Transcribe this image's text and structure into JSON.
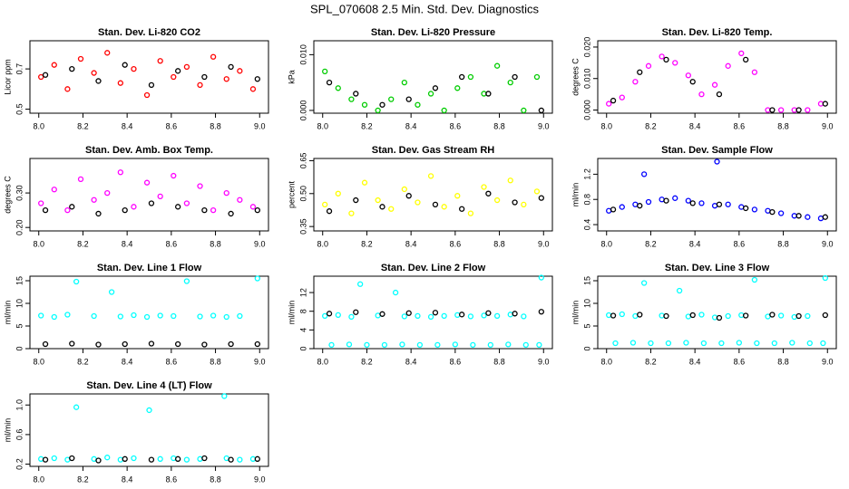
{
  "title": "SPL_070608  2.5 Min. Std. Dev. Diagnostics",
  "chart_data": [
    {
      "type": "scatter",
      "title": "Stan. Dev. Li-820 CO2",
      "ylabel": "Licor ppm",
      "xlim": [
        7.96,
        9.04
      ],
      "ylim": [
        0.48,
        0.84
      ],
      "xticks": [
        {
          "value": 8.0,
          "label": "8.0"
        },
        8.2,
        8.4,
        8.6,
        8.8,
        {
          "value": 9.0,
          "label": "9.0"
        }
      ],
      "yticks": [
        0.5,
        0.7
      ],
      "series": [
        {
          "color": "#ff0000",
          "x": [
            8.01,
            8.07,
            8.13,
            8.19,
            8.25,
            8.31,
            8.37,
            8.43,
            8.49,
            8.55,
            8.61,
            8.67,
            8.73,
            8.79,
            8.85,
            8.91,
            8.97
          ],
          "values": [
            0.66,
            0.72,
            0.6,
            0.75,
            0.68,
            0.78,
            0.63,
            0.7,
            0.57,
            0.74,
            0.66,
            0.71,
            0.62,
            0.76,
            0.65,
            0.69,
            0.6
          ]
        },
        {
          "color": "#000000",
          "x": [
            8.03,
            8.15,
            8.27,
            8.39,
            8.51,
            8.63,
            8.75,
            8.87,
            8.99
          ],
          "values": [
            0.67,
            0.7,
            0.64,
            0.72,
            0.62,
            0.69,
            0.66,
            0.71,
            0.65
          ]
        }
      ]
    },
    {
      "type": "scatter",
      "title": "Stan. Dev. Li-820 Pressure",
      "ylabel": "kPa",
      "xlim": [
        7.96,
        9.04
      ],
      "ylim": [
        -0.0005,
        0.0125
      ],
      "xticks": [
        {
          "value": 8.0,
          "label": "8.0"
        },
        8.2,
        8.4,
        8.6,
        8.8,
        {
          "value": 9.0,
          "label": "9.0"
        }
      ],
      "yticks": [
        {
          "value": 0,
          "label": "0.000"
        },
        {
          "value": 0.01,
          "label": "0.010"
        }
      ],
      "series": [
        {
          "color": "#00cc00",
          "x": [
            8.01,
            8.07,
            8.13,
            8.19,
            8.25,
            8.31,
            8.37,
            8.43,
            8.49,
            8.55,
            8.61,
            8.67,
            8.73,
            8.79,
            8.85,
            8.91,
            8.97
          ],
          "values": [
            0.007,
            0.004,
            0.002,
            0.001,
            0.0,
            0.002,
            0.005,
            0.001,
            0.003,
            0.0,
            0.004,
            0.006,
            0.003,
            0.008,
            0.005,
            0.0,
            0.006
          ]
        },
        {
          "color": "#000000",
          "x": [
            8.03,
            8.15,
            8.27,
            8.39,
            8.51,
            8.63,
            8.75,
            8.87,
            8.99
          ],
          "values": [
            0.005,
            0.003,
            0.001,
            0.002,
            0.004,
            0.006,
            0.003,
            0.006,
            0.0
          ]
        }
      ]
    },
    {
      "type": "scatter",
      "title": "Stan. Dev. Li-820 Temp.",
      "ylabel": "degrees C",
      "xlim": [
        7.96,
        9.04
      ],
      "ylim": [
        -0.001,
        0.022
      ],
      "xticks": [
        {
          "value": 8.0,
          "label": "8.0"
        },
        8.2,
        8.4,
        8.6,
        8.8,
        {
          "value": 9.0,
          "label": "9.0"
        }
      ],
      "yticks": [
        {
          "value": 0,
          "label": "0.000"
        },
        {
          "value": 0.01,
          "label": "0.010"
        },
        {
          "value": 0.02,
          "label": "0.020"
        }
      ],
      "series": [
        {
          "color": "#ff00ff",
          "x": [
            8.01,
            8.07,
            8.13,
            8.19,
            8.25,
            8.31,
            8.37,
            8.43,
            8.49,
            8.55,
            8.61,
            8.67,
            8.73,
            8.79,
            8.85,
            8.91,
            8.97
          ],
          "values": [
            0.002,
            0.004,
            0.009,
            0.014,
            0.017,
            0.015,
            0.011,
            0.005,
            0.008,
            0.014,
            0.018,
            0.012,
            0.0,
            0.0,
            0.0,
            0.0,
            0.002
          ]
        },
        {
          "color": "#000000",
          "x": [
            8.03,
            8.15,
            8.27,
            8.39,
            8.51,
            8.63,
            8.75,
            8.87,
            8.99
          ],
          "values": [
            0.003,
            0.012,
            0.016,
            0.009,
            0.005,
            0.016,
            0.0,
            0.0,
            0.002
          ]
        }
      ]
    },
    {
      "type": "scatter",
      "title": "Stan. Dev. Amb. Box Temp.",
      "ylabel": "degrees C",
      "xlim": [
        7.96,
        9.04
      ],
      "ylim": [
        0.19,
        0.4
      ],
      "xticks": [
        {
          "value": 8.0,
          "label": "8.0"
        },
        8.2,
        8.4,
        8.6,
        8.8,
        {
          "value": 9.0,
          "label": "9.0"
        }
      ],
      "yticks": [
        {
          "value": 0.2,
          "label": "0.20"
        },
        {
          "value": 0.3,
          "label": "0.30"
        }
      ],
      "series": [
        {
          "color": "#ff00ff",
          "x": [
            8.01,
            8.07,
            8.13,
            8.19,
            8.25,
            8.31,
            8.37,
            8.43,
            8.49,
            8.55,
            8.61,
            8.67,
            8.73,
            8.79,
            8.85,
            8.91,
            8.97
          ],
          "values": [
            0.27,
            0.31,
            0.25,
            0.34,
            0.28,
            0.3,
            0.36,
            0.26,
            0.33,
            0.29,
            0.35,
            0.27,
            0.32,
            0.25,
            0.3,
            0.28,
            0.26
          ]
        },
        {
          "color": "#000000",
          "x": [
            8.03,
            8.15,
            8.27,
            8.39,
            8.51,
            8.63,
            8.75,
            8.87,
            8.99
          ],
          "values": [
            0.25,
            0.26,
            0.24,
            0.25,
            0.27,
            0.26,
            0.25,
            0.24,
            0.25
          ]
        }
      ]
    },
    {
      "type": "scatter",
      "title": "Stan. Dev. Gas Stream RH",
      "ylabel": "percent",
      "xlim": [
        7.96,
        9.04
      ],
      "ylim": [
        0.33,
        0.66
      ],
      "xticks": [
        {
          "value": 8.0,
          "label": "8.0"
        },
        8.2,
        8.4,
        8.6,
        8.8,
        {
          "value": 9.0,
          "label": "9.0"
        }
      ],
      "yticks": [
        0.35,
        {
          "value": 0.5,
          "label": "0.50"
        },
        0.65
      ],
      "series": [
        {
          "color": "#ffff00",
          "x": [
            8.01,
            8.07,
            8.13,
            8.19,
            8.25,
            8.31,
            8.37,
            8.43,
            8.49,
            8.55,
            8.61,
            8.67,
            8.73,
            8.79,
            8.85,
            8.91,
            8.97
          ],
          "values": [
            0.45,
            0.5,
            0.41,
            0.55,
            0.47,
            0.43,
            0.52,
            0.46,
            0.58,
            0.44,
            0.49,
            0.41,
            0.53,
            0.47,
            0.56,
            0.45,
            0.51
          ]
        },
        {
          "color": "#000000",
          "x": [
            8.03,
            8.15,
            8.27,
            8.39,
            8.51,
            8.63,
            8.75,
            8.87,
            8.99
          ],
          "values": [
            0.42,
            0.47,
            0.44,
            0.49,
            0.45,
            0.43,
            0.5,
            0.46,
            0.48
          ]
        }
      ]
    },
    {
      "type": "scatter",
      "title": "Stan. Dev. Sample Flow",
      "ylabel": "ml/min",
      "xlim": [
        7.96,
        9.04
      ],
      "ylim": [
        0.3,
        1.45
      ],
      "xticks": [
        {
          "value": 8.0,
          "label": "8.0"
        },
        8.2,
        8.4,
        8.6,
        8.8,
        {
          "value": 9.0,
          "label": "9.0"
        }
      ],
      "yticks": [
        0.4,
        0.8,
        1.2
      ],
      "series": [
        {
          "color": "#0000ff",
          "x": [
            8.01,
            8.07,
            8.13,
            8.17,
            8.19,
            8.25,
            8.31,
            8.37,
            8.43,
            8.49,
            8.5,
            8.55,
            8.61,
            8.67,
            8.73,
            8.79,
            8.85,
            8.91,
            8.97
          ],
          "values": [
            0.62,
            0.68,
            0.72,
            1.2,
            0.76,
            0.8,
            0.82,
            0.78,
            0.74,
            0.7,
            1.4,
            0.72,
            0.68,
            0.64,
            0.62,
            0.58,
            0.54,
            0.52,
            0.5
          ]
        },
        {
          "color": "#000000",
          "x": [
            8.03,
            8.15,
            8.27,
            8.39,
            8.51,
            8.63,
            8.75,
            8.87,
            8.99
          ],
          "values": [
            0.64,
            0.7,
            0.78,
            0.74,
            0.72,
            0.66,
            0.6,
            0.54,
            0.52
          ]
        }
      ]
    },
    {
      "type": "scatter",
      "title": "Stan. Dev. Line 1 Flow",
      "ylabel": "ml/min",
      "xlim": [
        7.96,
        9.04
      ],
      "ylim": [
        0,
        16
      ],
      "xticks": [
        {
          "value": 8.0,
          "label": "8.0"
        },
        8.2,
        8.4,
        8.6,
        8.8,
        {
          "value": 9.0,
          "label": "9.0"
        }
      ],
      "yticks": [
        0,
        5,
        10,
        15
      ],
      "series": [
        {
          "color": "#00ffff",
          "x": [
            8.01,
            8.07,
            8.13,
            8.17,
            8.25,
            8.33,
            8.37,
            8.43,
            8.49,
            8.55,
            8.61,
            8.67,
            8.73,
            8.79,
            8.85,
            8.91,
            8.99
          ],
          "values": [
            7.3,
            7.0,
            7.5,
            14.8,
            7.2,
            12.5,
            7.1,
            7.4,
            7.0,
            7.3,
            7.2,
            14.9,
            7.1,
            7.3,
            7.0,
            7.2,
            15.5
          ]
        },
        {
          "color": "#000000",
          "x": [
            8.03,
            8.15,
            8.27,
            8.39,
            8.51,
            8.63,
            8.75,
            8.87,
            8.99
          ],
          "values": [
            1.0,
            1.1,
            0.9,
            1.0,
            1.1,
            1.0,
            0.9,
            1.0,
            1.0
          ]
        }
      ]
    },
    {
      "type": "scatter",
      "title": "Stan. Dev. Line 2 Flow",
      "ylabel": "ml/min",
      "xlim": [
        7.96,
        9.04
      ],
      "ylim": [
        0,
        15.5
      ],
      "xticks": [
        {
          "value": 8.0,
          "label": "8.0"
        },
        8.2,
        8.4,
        8.6,
        8.8,
        {
          "value": 9.0,
          "label": "9.0"
        }
      ],
      "yticks": [
        0,
        4,
        8,
        12
      ],
      "series": [
        {
          "color": "#00ffff",
          "x": [
            8.01,
            8.07,
            8.13,
            8.17,
            8.25,
            8.33,
            8.37,
            8.43,
            8.49,
            8.55,
            8.61,
            8.67,
            8.73,
            8.79,
            8.85,
            8.91,
            8.99
          ],
          "values": [
            7.0,
            7.2,
            6.8,
            13.8,
            7.1,
            12.0,
            6.9,
            7.0,
            6.8,
            7.0,
            7.2,
            6.9,
            7.1,
            7.0,
            7.3,
            6.9,
            15.2
          ]
        },
        {
          "color": "#00ffff",
          "x": [
            8.04,
            8.12,
            8.2,
            8.28,
            8.36,
            8.44,
            8.52,
            8.6,
            8.68,
            8.76,
            8.84,
            8.92,
            8.98
          ],
          "values": [
            0.8,
            0.9,
            0.8,
            0.8,
            0.9,
            0.8,
            0.8,
            0.9,
            0.8,
            0.8,
            0.9,
            0.8,
            0.8
          ]
        },
        {
          "color": "#000000",
          "x": [
            8.03,
            8.15,
            8.27,
            8.39,
            8.51,
            8.63,
            8.75,
            8.87,
            8.99
          ],
          "values": [
            7.5,
            7.8,
            7.4,
            7.6,
            7.7,
            7.3,
            7.6,
            7.5,
            7.9
          ]
        }
      ]
    },
    {
      "type": "scatter",
      "title": "Stan. Dev. Line 3 Flow",
      "ylabel": "ml/min",
      "xlim": [
        7.96,
        9.04
      ],
      "ylim": [
        0,
        16
      ],
      "xticks": [
        {
          "value": 8.0,
          "label": "8.0"
        },
        8.2,
        8.4,
        8.6,
        8.8,
        {
          "value": 9.0,
          "label": "9.0"
        }
      ],
      "yticks": [
        0,
        5,
        10,
        15
      ],
      "series": [
        {
          "color": "#00ffff",
          "x": [
            8.01,
            8.07,
            8.13,
            8.17,
            8.25,
            8.33,
            8.37,
            8.43,
            8.49,
            8.55,
            8.61,
            8.67,
            8.73,
            8.79,
            8.85,
            8.91,
            8.99
          ],
          "values": [
            7.4,
            7.6,
            7.2,
            14.5,
            7.3,
            12.8,
            7.1,
            7.5,
            6.9,
            7.2,
            7.4,
            15.2,
            7.1,
            7.3,
            7.0,
            7.2,
            15.6
          ]
        },
        {
          "color": "#00ffff",
          "x": [
            8.04,
            8.12,
            8.2,
            8.28,
            8.36,
            8.44,
            8.52,
            8.6,
            8.68,
            8.76,
            8.84,
            8.92,
            8.98
          ],
          "values": [
            1.2,
            1.3,
            1.2,
            1.2,
            1.3,
            1.2,
            1.2,
            1.3,
            1.2,
            1.2,
            1.3,
            1.2,
            1.2
          ]
        },
        {
          "color": "#000000",
          "x": [
            8.03,
            8.15,
            8.27,
            8.39,
            8.51,
            8.63,
            8.75,
            8.87,
            8.99
          ],
          "values": [
            7.3,
            7.5,
            7.2,
            7.4,
            6.8,
            7.3,
            7.5,
            7.2,
            7.4
          ]
        }
      ]
    },
    {
      "type": "scatter",
      "title": "Stan. Dev. Line 4 (LT) Flow",
      "ylabel": "ml/min",
      "xlim": [
        7.96,
        9.04
      ],
      "ylim": [
        0.17,
        1.15
      ],
      "xticks": [
        {
          "value": 8.0,
          "label": "8.0"
        },
        8.2,
        8.4,
        8.6,
        8.8,
        {
          "value": 9.0,
          "label": "9.0"
        }
      ],
      "yticks": [
        0.2,
        0.6,
        {
          "value": 1.0,
          "label": "1.0"
        }
      ],
      "series": [
        {
          "color": "#00ffff",
          "x": [
            8.01,
            8.07,
            8.13,
            8.17,
            8.25,
            8.31,
            8.37,
            8.43,
            8.5,
            8.55,
            8.61,
            8.67,
            8.73,
            8.84,
            8.85,
            8.91,
            8.97
          ],
          "values": [
            0.27,
            0.28,
            0.26,
            0.97,
            0.27,
            0.29,
            0.26,
            0.28,
            0.93,
            0.27,
            0.28,
            0.26,
            0.27,
            1.12,
            0.28,
            0.26,
            0.27
          ]
        },
        {
          "color": "#000000",
          "x": [
            8.03,
            8.15,
            8.27,
            8.39,
            8.51,
            8.63,
            8.75,
            8.87,
            8.99
          ],
          "values": [
            0.26,
            0.28,
            0.25,
            0.27,
            0.26,
            0.27,
            0.28,
            0.26,
            0.27
          ]
        }
      ]
    }
  ]
}
